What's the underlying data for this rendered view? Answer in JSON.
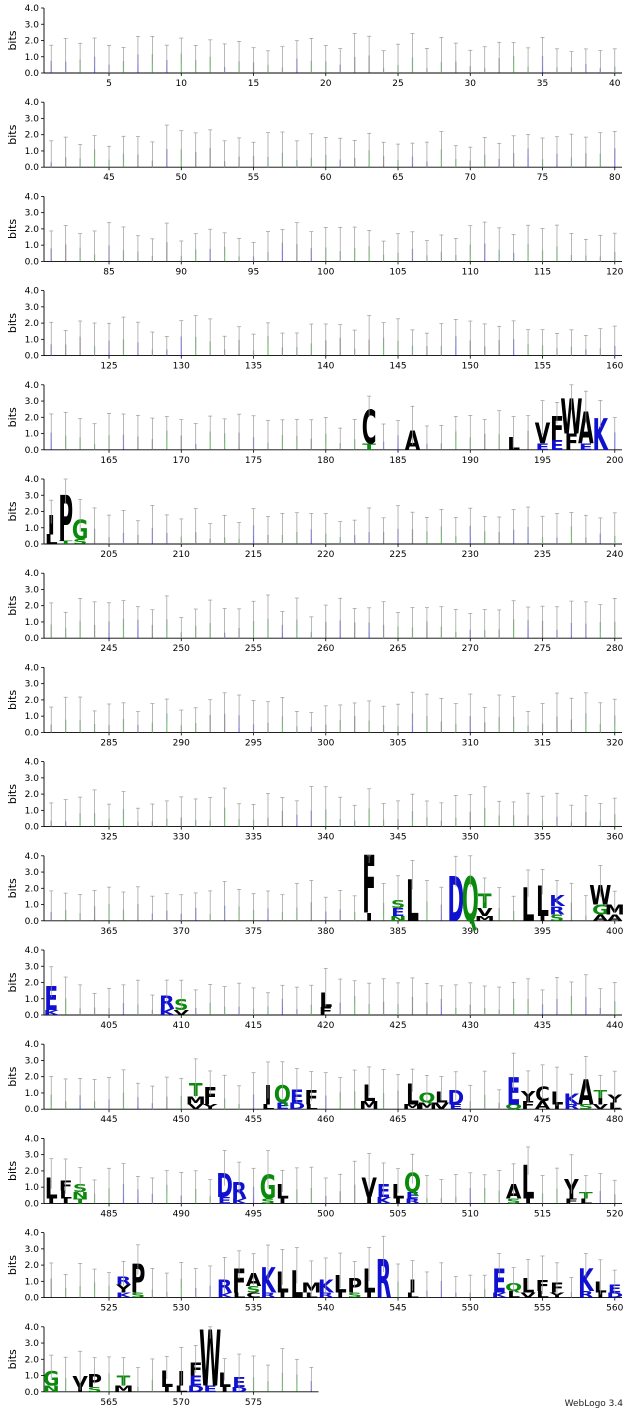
{
  "chart_data": {
    "type": "sequence-logo",
    "ylabel": "bits",
    "ylim": [
      0,
      4.0
    ],
    "yticks": [
      "0.0",
      "1.0",
      "2.0",
      "3.0",
      "4.0"
    ],
    "positions_per_row": 40,
    "total_positions": 579,
    "x_tick_labels_every": 5,
    "colors": {
      "hydrophobic": "#000000",
      "polar": "#0a8a0a",
      "basic": "#1010d0",
      "acidic": "#1010d0",
      "errorbar": "#9a9a9a"
    },
    "letter_groups": {
      "black": "ACFILMPVWY",
      "blue": "DEHKR",
      "green": "GNQST"
    },
    "conserved_positions": [
      {
        "pos": 183,
        "letters": [
          [
            "C",
            2.1
          ],
          [
            "T",
            0.4
          ]
        ]
      },
      {
        "pos": 186,
        "letters": [
          [
            "A",
            1.2
          ]
        ]
      },
      {
        "pos": 193,
        "letters": [
          [
            "L",
            0.8
          ]
        ]
      },
      {
        "pos": 195,
        "letters": [
          [
            "V",
            1.3
          ],
          [
            "E",
            0.4
          ]
        ]
      },
      {
        "pos": 196,
        "letters": [
          [
            "F",
            1.5
          ],
          [
            "E",
            0.6
          ]
        ]
      },
      {
        "pos": 197,
        "letters": [
          [
            "W",
            2.2
          ],
          [
            "F",
            1.0
          ]
        ]
      },
      {
        "pos": 198,
        "letters": [
          [
            "A",
            2.0
          ],
          [
            "E",
            0.4
          ]
        ]
      },
      {
        "pos": 199,
        "letters": [
          [
            "K",
            2.0
          ]
        ]
      },
      {
        "pos": 201,
        "letters": [
          [
            "I",
            1.2
          ],
          [
            "L",
            0.6
          ]
        ]
      },
      {
        "pos": 202,
        "letters": [
          [
            "P",
            2.9
          ],
          [
            "T",
            0.2
          ]
        ]
      },
      {
        "pos": 203,
        "letters": [
          [
            "G",
            1.2
          ],
          [
            "S",
            0.3
          ]
        ]
      },
      {
        "pos": 383,
        "letters": [
          [
            "F",
            3.6
          ],
          [
            "I",
            0.5
          ]
        ]
      },
      {
        "pos": 385,
        "letters": [
          [
            "E",
            0.5
          ],
          [
            "S",
            0.5
          ],
          [
            "N",
            0.3
          ]
        ]
      },
      {
        "pos": 386,
        "letters": [
          [
            "L",
            2.6
          ]
        ]
      },
      {
        "pos": 389,
        "letters": [
          [
            "D",
            2.8
          ]
        ]
      },
      {
        "pos": 390,
        "letters": [
          [
            "Q",
            2.8
          ]
        ]
      },
      {
        "pos": 391,
        "letters": [
          [
            "T",
            0.9
          ],
          [
            "V",
            0.5
          ],
          [
            "M",
            0.3
          ]
        ]
      },
      {
        "pos": 394,
        "letters": [
          [
            "L",
            2.1
          ]
        ]
      },
      {
        "pos": 395,
        "letters": [
          [
            "L",
            1.9
          ],
          [
            "I",
            0.3
          ]
        ]
      },
      {
        "pos": 396,
        "letters": [
          [
            "K",
            0.7
          ],
          [
            "R",
            0.5
          ],
          [
            "S",
            0.4
          ]
        ]
      },
      {
        "pos": 399,
        "letters": [
          [
            "W",
            1.2
          ],
          [
            "G",
            0.6
          ],
          [
            "A",
            0.4
          ]
        ]
      },
      {
        "pos": 400,
        "letters": [
          [
            "M",
            0.6
          ],
          [
            "A",
            0.4
          ]
        ]
      },
      {
        "pos": 401,
        "letters": [
          [
            "E",
            1.5
          ],
          [
            "K",
            0.3
          ]
        ]
      },
      {
        "pos": 409,
        "letters": [
          [
            "R",
            0.8
          ],
          [
            "K",
            0.4
          ]
        ]
      },
      {
        "pos": 410,
        "letters": [
          [
            "S",
            0.7
          ],
          [
            "V",
            0.3
          ]
        ]
      },
      {
        "pos": 420,
        "letters": [
          [
            "L",
            0.9
          ],
          [
            "F",
            0.5
          ]
        ]
      },
      {
        "pos": 451,
        "letters": [
          [
            "T",
            0.8
          ],
          [
            "M",
            0.5
          ],
          [
            "V",
            0.3
          ]
        ]
      },
      {
        "pos": 452,
        "letters": [
          [
            "F",
            1.1
          ],
          [
            "Y",
            0.3
          ]
        ]
      },
      {
        "pos": 456,
        "letters": [
          [
            "I",
            1.2
          ],
          [
            "L",
            0.3
          ]
        ]
      },
      {
        "pos": 457,
        "letters": [
          [
            "Q",
            1.1
          ],
          [
            "E",
            0.4
          ]
        ]
      },
      {
        "pos": 458,
        "letters": [
          [
            "E",
            0.8
          ],
          [
            "D",
            0.4
          ]
        ]
      },
      {
        "pos": 459,
        "letters": [
          [
            "F",
            0.9
          ],
          [
            "L",
            0.3
          ]
        ]
      },
      {
        "pos": 463,
        "letters": [
          [
            "L",
            1.0
          ],
          [
            "M",
            0.5
          ]
        ]
      },
      {
        "pos": 466,
        "letters": [
          [
            "L",
            1.3
          ],
          [
            "M",
            0.3
          ]
        ]
      },
      {
        "pos": 467,
        "letters": [
          [
            "Q",
            0.6
          ],
          [
            "M",
            0.4
          ]
        ]
      },
      {
        "pos": 468,
        "letters": [
          [
            "L",
            0.7
          ],
          [
            "V",
            0.4
          ]
        ]
      },
      {
        "pos": 469,
        "letters": [
          [
            "D",
            0.9
          ],
          [
            "E",
            0.3
          ]
        ]
      },
      {
        "pos": 473,
        "letters": [
          [
            "E",
            1.7
          ],
          [
            "Q",
            0.3
          ]
        ]
      },
      {
        "pos": 474,
        "letters": [
          [
            "Y",
            0.6
          ],
          [
            "F",
            0.5
          ]
        ]
      },
      {
        "pos": 475,
        "letters": [
          [
            "C",
            0.9
          ],
          [
            "A",
            0.5
          ]
        ]
      },
      {
        "pos": 476,
        "letters": [
          [
            "L",
            0.8
          ],
          [
            "I",
            0.3
          ]
        ]
      },
      {
        "pos": 477,
        "letters": [
          [
            "K",
            0.7
          ],
          [
            "R",
            0.3
          ]
        ]
      },
      {
        "pos": 478,
        "letters": [
          [
            "A",
            1.6
          ],
          [
            "S",
            0.3
          ]
        ]
      },
      {
        "pos": 479,
        "letters": [
          [
            "T",
            0.5
          ],
          [
            "I",
            0.4
          ],
          [
            "V",
            0.3
          ]
        ]
      },
      {
        "pos": 480,
        "letters": [
          [
            "Y",
            0.5
          ],
          [
            "L",
            0.4
          ]
        ]
      },
      {
        "pos": 481,
        "letters": [
          [
            "L",
            1.3
          ],
          [
            "I",
            0.3
          ]
        ]
      },
      {
        "pos": 482,
        "letters": [
          [
            "F",
            0.6
          ],
          [
            "L",
            0.5
          ],
          [
            "I",
            0.3
          ]
        ]
      },
      {
        "pos": 483,
        "letters": [
          [
            "S",
            0.5
          ],
          [
            "N",
            0.4
          ],
          [
            "T",
            0.3
          ]
        ]
      },
      {
        "pos": 493,
        "letters": [
          [
            "D",
            1.5
          ],
          [
            "E",
            0.4
          ]
        ]
      },
      {
        "pos": 494,
        "letters": [
          [
            "R",
            1.0
          ],
          [
            "K",
            0.3
          ]
        ]
      },
      {
        "pos": 496,
        "letters": [
          [
            "G",
            1.5
          ],
          [
            "S",
            0.3
          ]
        ]
      },
      {
        "pos": 497,
        "letters": [
          [
            "L",
            0.9
          ],
          [
            "I",
            0.3
          ]
        ]
      },
      {
        "pos": 503,
        "letters": [
          [
            "V",
            1.2
          ],
          [
            "I",
            0.4
          ]
        ]
      },
      {
        "pos": 504,
        "letters": [
          [
            "E",
            0.8
          ],
          [
            "K",
            0.4
          ]
        ]
      },
      {
        "pos": 505,
        "letters": [
          [
            "L",
            0.9
          ],
          [
            "I",
            0.3
          ]
        ]
      },
      {
        "pos": 506,
        "letters": [
          [
            "Q",
            1.2
          ],
          [
            "E",
            0.4
          ],
          [
            "R",
            0.3
          ]
        ]
      },
      {
        "pos": 513,
        "letters": [
          [
            "A",
            0.9
          ],
          [
            "S",
            0.3
          ]
        ]
      },
      {
        "pos": 514,
        "letters": [
          [
            "L",
            2.1
          ],
          [
            "I",
            0.3
          ]
        ]
      },
      {
        "pos": 517,
        "letters": [
          [
            "Y",
            1.2
          ],
          [
            "F",
            0.3
          ]
        ]
      },
      {
        "pos": 518,
        "letters": [
          [
            "T",
            0.4
          ],
          [
            "L",
            0.3
          ]
        ]
      },
      {
        "pos": 526,
        "letters": [
          [
            "Y",
            0.5
          ],
          [
            "R",
            0.5
          ],
          [
            "K",
            0.3
          ]
        ]
      },
      {
        "pos": 527,
        "letters": [
          [
            "P",
            1.8
          ],
          [
            "S",
            0.3
          ]
        ]
      },
      {
        "pos": 533,
        "letters": [
          [
            "R",
            0.8
          ],
          [
            "K",
            0.3
          ]
        ]
      },
      {
        "pos": 534,
        "letters": [
          [
            "F",
            1.5
          ],
          [
            "L",
            0.3
          ]
        ]
      },
      {
        "pos": 535,
        "letters": [
          [
            "A",
            0.8
          ],
          [
            "S",
            0.4
          ],
          [
            "C",
            0.3
          ]
        ]
      },
      {
        "pos": 536,
        "letters": [
          [
            "K",
            1.6
          ],
          [
            "R",
            0.3
          ]
        ]
      },
      {
        "pos": 537,
        "letters": [
          [
            "L",
            1.3
          ],
          [
            "I",
            0.3
          ]
        ]
      },
      {
        "pos": 538,
        "letters": [
          [
            "L",
            1.7
          ]
        ]
      },
      {
        "pos": 539,
        "letters": [
          [
            "M",
            0.6
          ],
          [
            "L",
            0.3
          ]
        ]
      },
      {
        "pos": 540,
        "letters": [
          [
            "K",
            0.8
          ],
          [
            "R",
            0.3
          ]
        ]
      },
      {
        "pos": 541,
        "letters": [
          [
            "L",
            1.1
          ],
          [
            "I",
            0.3
          ]
        ]
      },
      {
        "pos": 542,
        "letters": [
          [
            "P",
            0.9
          ],
          [
            "S",
            0.3
          ]
        ]
      },
      {
        "pos": 543,
        "letters": [
          [
            "L",
            1.5
          ],
          [
            "I",
            0.3
          ]
        ]
      },
      {
        "pos": 544,
        "letters": [
          [
            "R",
            2.4
          ]
        ]
      },
      {
        "pos": 546,
        "letters": [
          [
            "I",
            0.8
          ],
          [
            "L",
            0.3
          ]
        ]
      },
      {
        "pos": 552,
        "letters": [
          [
            "E",
            1.5
          ],
          [
            "K",
            0.3
          ]
        ]
      },
      {
        "pos": 553,
        "letters": [
          [
            "Q",
            0.5
          ],
          [
            "L",
            0.4
          ]
        ]
      },
      {
        "pos": 554,
        "letters": [
          [
            "L",
            0.9
          ],
          [
            "V",
            0.3
          ]
        ]
      },
      {
        "pos": 555,
        "letters": [
          [
            "F",
            0.7
          ],
          [
            "L",
            0.4
          ]
        ]
      },
      {
        "pos": 556,
        "letters": [
          [
            "F",
            0.6
          ],
          [
            "Y",
            0.3
          ]
        ]
      },
      {
        "pos": 558,
        "letters": [
          [
            "K",
            1.4
          ],
          [
            "R",
            0.4
          ]
        ]
      },
      {
        "pos": 559,
        "letters": [
          [
            "L",
            0.7
          ],
          [
            "I",
            0.3
          ]
        ]
      },
      {
        "pos": 560,
        "letters": [
          [
            "E",
            0.5
          ],
          [
            "D",
            0.3
          ]
        ]
      },
      {
        "pos": 561,
        "letters": [
          [
            "G",
            0.9
          ],
          [
            "N",
            0.4
          ]
        ]
      },
      {
        "pos": 563,
        "letters": [
          [
            "V",
            0.7
          ],
          [
            "I",
            0.3
          ]
        ]
      },
      {
        "pos": 564,
        "letters": [
          [
            "P",
            0.8
          ],
          [
            "S",
            0.3
          ]
        ]
      },
      {
        "pos": 566,
        "letters": [
          [
            "T",
            0.6
          ],
          [
            "M",
            0.4
          ]
        ]
      },
      {
        "pos": 569,
        "letters": [
          [
            "L",
            1.0
          ],
          [
            "I",
            0.3
          ]
        ]
      },
      {
        "pos": 570,
        "letters": [
          [
            "I",
            0.9
          ],
          [
            "L",
            0.4
          ]
        ]
      },
      {
        "pos": 571,
        "letters": [
          [
            "F",
            0.8
          ],
          [
            "E",
            0.6
          ],
          [
            "D",
            0.4
          ]
        ]
      },
      {
        "pos": 572,
        "letters": [
          [
            "W",
            3.5
          ],
          [
            "E",
            0.4
          ]
        ]
      },
      {
        "pos": 573,
        "letters": [
          [
            "L",
            0.9
          ],
          [
            "I",
            0.3
          ]
        ]
      },
      {
        "pos": 574,
        "letters": [
          [
            "E",
            0.6
          ],
          [
            "D",
            0.3
          ]
        ]
      }
    ]
  },
  "footer": "WebLogo 3.4"
}
